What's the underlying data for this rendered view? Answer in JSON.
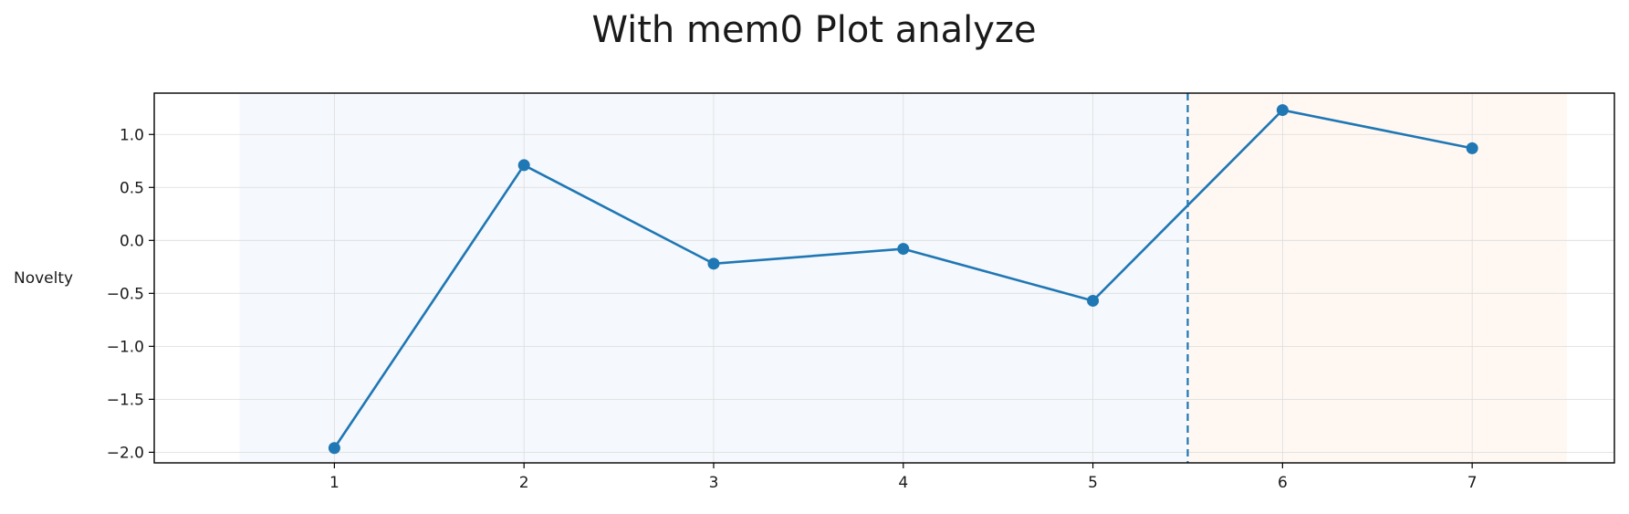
{
  "chart_data": {
    "type": "line",
    "title": "With mem0 Plot analyze",
    "xlabel": "",
    "ylabel": "Novelty",
    "x": [
      1,
      2,
      3,
      4,
      5,
      6,
      7
    ],
    "series": [
      {
        "values": [
          -1.96,
          0.71,
          -0.22,
          -0.08,
          -0.57,
          1.23,
          0.87
        ],
        "color": "#1f77b4"
      }
    ],
    "xlim": [
      0.05,
      7.75
    ],
    "ylim": [
      -2.1,
      1.39
    ],
    "xticks": [
      1,
      2,
      3,
      4,
      5,
      6,
      7
    ],
    "yticks": [
      1.0,
      0.5,
      0.0,
      -0.5,
      -1.0,
      -1.5,
      -2.0
    ],
    "ytick_labels": [
      "1.0",
      "0.5",
      "0.0",
      "−0.5",
      "−1.0",
      "−1.5",
      "−2.0"
    ],
    "grid": true,
    "marker": "circle",
    "split_line": {
      "x": 5.5,
      "style": "dashed",
      "color": "#1f77b4"
    },
    "shaded_regions": [
      {
        "from": 0.5,
        "to": 5.5,
        "color": "#f5f8fc"
      },
      {
        "from": 5.5,
        "to": 7.5,
        "color": "#fff8f2"
      }
    ]
  }
}
